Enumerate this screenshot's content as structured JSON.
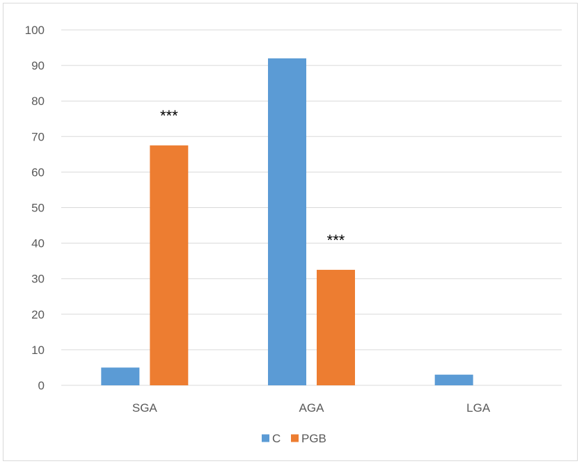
{
  "chart_data": {
    "type": "bar",
    "categories": [
      "SGA",
      "AGA",
      "LGA"
    ],
    "series": [
      {
        "name": "C",
        "values": [
          5,
          92,
          3
        ],
        "color": "#5b9bd5"
      },
      {
        "name": "PGB",
        "values": [
          67.5,
          32.5,
          0
        ],
        "color": "#ed7d31"
      }
    ],
    "ylim": [
      0,
      100
    ],
    "yticks": [
      0,
      10,
      20,
      30,
      40,
      50,
      60,
      70,
      80,
      90,
      100
    ],
    "grid": true,
    "legend": "bottom",
    "annotations": [
      {
        "category": "SGA",
        "series": "PGB",
        "text": "***"
      },
      {
        "category": "AGA",
        "series": "PGB",
        "text": "***"
      }
    ],
    "gridColor": "#d9d9d9"
  }
}
